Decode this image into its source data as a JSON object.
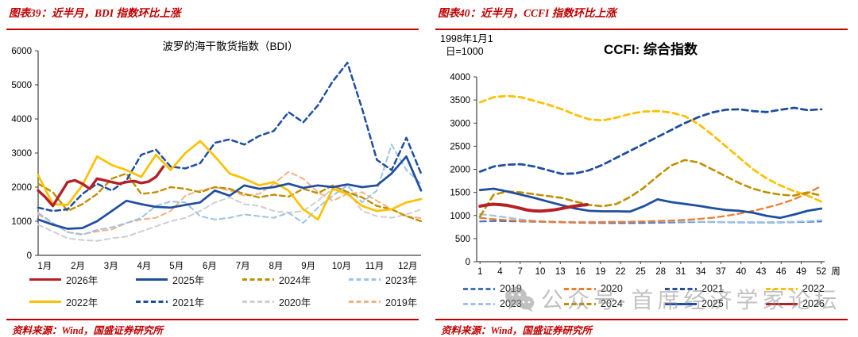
{
  "colors": {
    "accent_red": "#c00000",
    "axis": "#404040",
    "watermark_gray": "#8f8f8f"
  },
  "left_panel": {
    "header": "图表39：近半月，BDI 指数环比上涨",
    "source": "资料来源：Wind，国盛证券研究所"
  },
  "right_panel": {
    "header": "图表40：近半月，CCFI 指数环比上涨",
    "source": "资料来源：Wind，国盛证券研究所",
    "unit_note_line1": "1998年1月1",
    "unit_note_line2": "日=1000"
  },
  "watermark": {
    "icon": "wechat-icon",
    "text": "公众号·首席经济学家论坛"
  },
  "chart_data": [
    {
      "type": "line",
      "title": "波罗的海干散货指数（BDI）",
      "xlabel": "",
      "ylabel": "",
      "x_axis_label": "",
      "xlim": [
        0,
        52
      ],
      "ylim": [
        0,
        6000
      ],
      "grid": false,
      "legend_position": "bottom",
      "y_ticks": [
        0,
        1000,
        2000,
        3000,
        4000,
        5000,
        6000
      ],
      "x_ticks": [
        {
          "v": 0.9,
          "label": "1月"
        },
        {
          "v": 5.4,
          "label": "2月"
        },
        {
          "v": 9.9,
          "label": "3月"
        },
        {
          "v": 14.4,
          "label": "4月"
        },
        {
          "v": 18.8,
          "label": "5月"
        },
        {
          "v": 23.3,
          "label": "6月"
        },
        {
          "v": 27.8,
          "label": "7月"
        },
        {
          "v": 32.3,
          "label": "8月"
        },
        {
          "v": 36.7,
          "label": "9月"
        },
        {
          "v": 41.2,
          "label": "10月"
        },
        {
          "v": 45.7,
          "label": "11月"
        },
        {
          "v": 50.2,
          "label": "12月"
        }
      ],
      "legend_rows": [
        [
          "2026年",
          "2025年",
          "2024年",
          "2023年"
        ],
        [
          "2022年",
          "2021年",
          "2020年",
          "2019年"
        ]
      ],
      "series": [
        {
          "name": "2020年",
          "color": "#cfcfcf",
          "dash": true,
          "width": 2.0,
          "x0": 0,
          "dx": 2,
          "values": [
            900,
            700,
            500,
            450,
            420,
            500,
            550,
            700,
            850,
            1000,
            1100,
            1300,
            1550,
            1700,
            1500,
            1450,
            1300,
            1250,
            1300,
            1600,
            1950,
            1900,
            1300,
            1150,
            1100,
            1200,
            1350
          ]
        },
        {
          "name": "2019年",
          "color": "#f4b183",
          "dash": true,
          "width": 2.0,
          "x0": 0,
          "dx": 2,
          "values": [
            1200,
            950,
            680,
            620,
            700,
            760,
            950,
            1050,
            1100,
            1300,
            1750,
            1900,
            2000,
            1900,
            1750,
            1800,
            2100,
            2450,
            2250,
            1850,
            1600,
            1800,
            1850,
            1600,
            1350,
            1150,
            1090
          ]
        },
        {
          "name": "2023年",
          "color": "#9dc3e6",
          "dash": true,
          "width": 2.0,
          "x0": 0,
          "dx": 2,
          "values": [
            1250,
            950,
            680,
            600,
            750,
            820,
            950,
            1100,
            1450,
            1580,
            1550,
            1150,
            1050,
            1100,
            1200,
            1150,
            1100,
            1250,
            950,
            1400,
            1750,
            2050,
            1550,
            1900,
            3250,
            2500,
            2100
          ]
        },
        {
          "name": "2024年",
          "color": "#bf9000",
          "dash": true,
          "width": 2.4,
          "x0": 0,
          "dx": 2,
          "values": [
            2100,
            1850,
            1300,
            1500,
            1800,
            2250,
            2400,
            1800,
            1850,
            2000,
            1950,
            1850,
            2000,
            1950,
            1800,
            1700,
            1780,
            1720,
            1950,
            1820,
            2050,
            1850,
            1700,
            1450,
            1350,
            1150,
            1000
          ]
        },
        {
          "name": "2021年",
          "color": "#1f4e9f",
          "dash": true,
          "width": 2.5,
          "x0": 0,
          "dx": 2,
          "values": [
            1400,
            1300,
            1350,
            1800,
            2100,
            1900,
            2200,
            2950,
            3100,
            2600,
            2550,
            2700,
            3300,
            3400,
            3250,
            3500,
            3650,
            4200,
            3900,
            4400,
            5100,
            5650,
            4300,
            2800,
            2500,
            3450,
            2400
          ]
        },
        {
          "name": "2022年",
          "color": "#ffc000",
          "dash": false,
          "width": 2.7,
          "x0": 0,
          "dx": 2,
          "values": [
            2350,
            1500,
            1480,
            2050,
            2900,
            2650,
            2500,
            2300,
            2950,
            2500,
            3000,
            3350,
            2900,
            2400,
            2250,
            2050,
            2150,
            1900,
            1350,
            1050,
            1950,
            1800,
            1450,
            1300,
            1350,
            1550,
            1650
          ]
        },
        {
          "name": "2025年",
          "color": "#1f4e9f",
          "dash": false,
          "width": 2.7,
          "x0": 0,
          "dx": 2,
          "values": [
            1050,
            900,
            780,
            800,
            1000,
            1300,
            1600,
            1500,
            1420,
            1400,
            1480,
            1550,
            1900,
            1750,
            2050,
            1950,
            2000,
            2100,
            1980,
            2050,
            2000,
            2080,
            2000,
            2050,
            2400,
            2900,
            1900
          ]
        },
        {
          "name": "2026年",
          "color": "#b42025",
          "dash": false,
          "width": 3.4,
          "x0": 0,
          "dx": 1,
          "values": [
            1900,
            1700,
            1450,
            1800,
            2150,
            2200,
            2100,
            1950,
            2250,
            2200,
            2150,
            2100,
            2150,
            2180,
            2120,
            2160,
            2300,
            2600
          ]
        }
      ]
    },
    {
      "type": "line",
      "title": "CCFI: 综合指数",
      "subtitle": "1998年1月1日=1000",
      "xlabel": "",
      "ylabel": "",
      "x_axis_label": "周",
      "xlim": [
        0.5,
        52.5
      ],
      "ylim": [
        0,
        4000
      ],
      "grid": false,
      "legend_position": "bottom",
      "y_ticks": [
        0,
        500,
        1000,
        1500,
        2000,
        2500,
        3000,
        3500,
        4000
      ],
      "x_ticks": [
        {
          "v": 1,
          "label": "1"
        },
        {
          "v": 4,
          "label": "4"
        },
        {
          "v": 7,
          "label": "7"
        },
        {
          "v": 10,
          "label": "10"
        },
        {
          "v": 13,
          "label": "13"
        },
        {
          "v": 16,
          "label": "16"
        },
        {
          "v": 19,
          "label": "19"
        },
        {
          "v": 22,
          "label": "22"
        },
        {
          "v": 25,
          "label": "25"
        },
        {
          "v": 28,
          "label": "28"
        },
        {
          "v": 31,
          "label": "31"
        },
        {
          "v": 34,
          "label": "34"
        },
        {
          "v": 37,
          "label": "37"
        },
        {
          "v": 40,
          "label": "40"
        },
        {
          "v": 43,
          "label": "43"
        },
        {
          "v": 46,
          "label": "46"
        },
        {
          "v": 49,
          "label": "49"
        },
        {
          "v": 52,
          "label": "52"
        }
      ],
      "legend_rows": [
        [
          "2019",
          "2020",
          "2021",
          "2022"
        ],
        [
          "2023",
          "2024",
          "2025",
          "2026"
        ]
      ],
      "series": [
        {
          "name": "2019",
          "color": "#4472c4",
          "dash": true,
          "width": 2.2,
          "x0": 1,
          "dx": 2.04,
          "values": [
            870,
            880,
            875,
            870,
            865,
            860,
            852,
            845,
            840,
            838,
            836,
            836,
            840,
            845,
            850,
            855,
            860,
            858,
            855,
            852,
            850,
            848,
            852,
            856,
            862,
            870
          ]
        },
        {
          "name": "2023",
          "color": "#9dc3e6",
          "dash": true,
          "width": 2.2,
          "x0": 1,
          "dx": 2.04,
          "values": [
            1030,
            995,
            955,
            915,
            888,
            872,
            865,
            860,
            860,
            862,
            864,
            866,
            869,
            871,
            870,
            868,
            865,
            862,
            860,
            858,
            856,
            856,
            858,
            864,
            875,
            900
          ]
        },
        {
          "name": "2020",
          "color": "#ed7d31",
          "dash": true,
          "width": 2.3,
          "x0": 1,
          "dx": 2.04,
          "values": [
            950,
            920,
            900,
            880,
            870,
            860,
            855,
            850,
            850,
            855,
            860,
            865,
            870,
            880,
            890,
            905,
            925,
            950,
            990,
            1040,
            1100,
            1170,
            1250,
            1350,
            1480,
            1640
          ]
        },
        {
          "name": "2022",
          "color": "#ffc000",
          "dash": true,
          "width": 2.8,
          "x0": 1,
          "dx": 2.04,
          "values": [
            3450,
            3560,
            3590,
            3560,
            3480,
            3400,
            3300,
            3180,
            3080,
            3060,
            3120,
            3200,
            3250,
            3260,
            3230,
            3150,
            2980,
            2750,
            2500,
            2250,
            2000,
            1800,
            1650,
            1530,
            1430,
            1300
          ]
        },
        {
          "name": "2024",
          "color": "#bf9000",
          "dash": true,
          "width": 2.6,
          "x0": 1,
          "dx": 2.04,
          "values": [
            980,
            1450,
            1520,
            1500,
            1460,
            1420,
            1380,
            1300,
            1230,
            1200,
            1250,
            1400,
            1600,
            1850,
            2080,
            2200,
            2150,
            2000,
            1850,
            1700,
            1580,
            1500,
            1450,
            1430,
            1500,
            1430
          ]
        },
        {
          "name": "2021",
          "color": "#1f4e9f",
          "dash": true,
          "width": 2.8,
          "x0": 1,
          "dx": 2.04,
          "values": [
            1950,
            2060,
            2100,
            2110,
            2060,
            1980,
            1900,
            1910,
            1980,
            2100,
            2250,
            2400,
            2550,
            2700,
            2850,
            3000,
            3130,
            3230,
            3290,
            3300,
            3260,
            3240,
            3290,
            3330,
            3280,
            3300
          ]
        },
        {
          "name": "2025",
          "color": "#1f4e9f",
          "dash": false,
          "width": 2.8,
          "x0": 1,
          "dx": 2.04,
          "values": [
            1550,
            1580,
            1520,
            1450,
            1380,
            1300,
            1220,
            1150,
            1100,
            1090,
            1090,
            1085,
            1200,
            1350,
            1290,
            1250,
            1210,
            1160,
            1120,
            1100,
            1060,
            990,
            950,
            1020,
            1100,
            1150
          ]
        },
        {
          "name": "2026",
          "color": "#b42025",
          "dash": false,
          "width": 4.0,
          "x0": 1,
          "dx": 1,
          "values": [
            1200,
            1230,
            1245,
            1235,
            1220,
            1190,
            1155,
            1120,
            1100,
            1095,
            1105,
            1120,
            1145,
            1175,
            1200,
            1220,
            1235
          ]
        }
      ]
    }
  ]
}
